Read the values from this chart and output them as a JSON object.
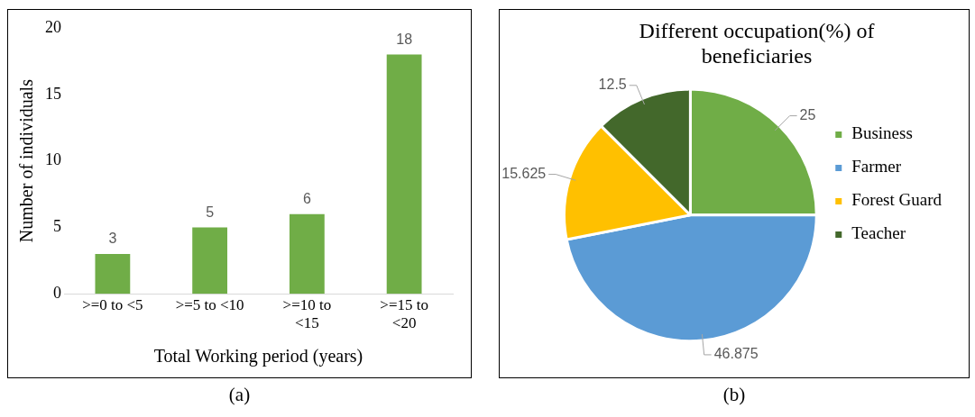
{
  "chart_data": [
    {
      "type": "bar",
      "xlabel": "Total Working period (years)",
      "ylabel": "Number of individuals",
      "categories": [
        ">=0 to <5",
        ">=5 to <10",
        ">=10 to <15",
        ">=15 to <20"
      ],
      "values": [
        3,
        5,
        6,
        18
      ],
      "color": "#70ad47",
      "ylim": [
        0,
        20
      ],
      "yticks": [
        0,
        5,
        10,
        15,
        20
      ],
      "grid": false,
      "legend": false,
      "data_labels": true,
      "annotations": [
        "(a)"
      ]
    },
    {
      "type": "pie",
      "title": "Different occupation(%) of beneficiaries",
      "categories": [
        "Business",
        "Farmer",
        "Forest Guard",
        "Teacher"
      ],
      "values": [
        25,
        46.875,
        15.625,
        12.5
      ],
      "colors": [
        "#70ad47",
        "#5b9bd5",
        "#ffc000",
        "#43682b"
      ],
      "legend": "right",
      "data_labels": true,
      "annotations": [
        "(b)"
      ]
    }
  ]
}
